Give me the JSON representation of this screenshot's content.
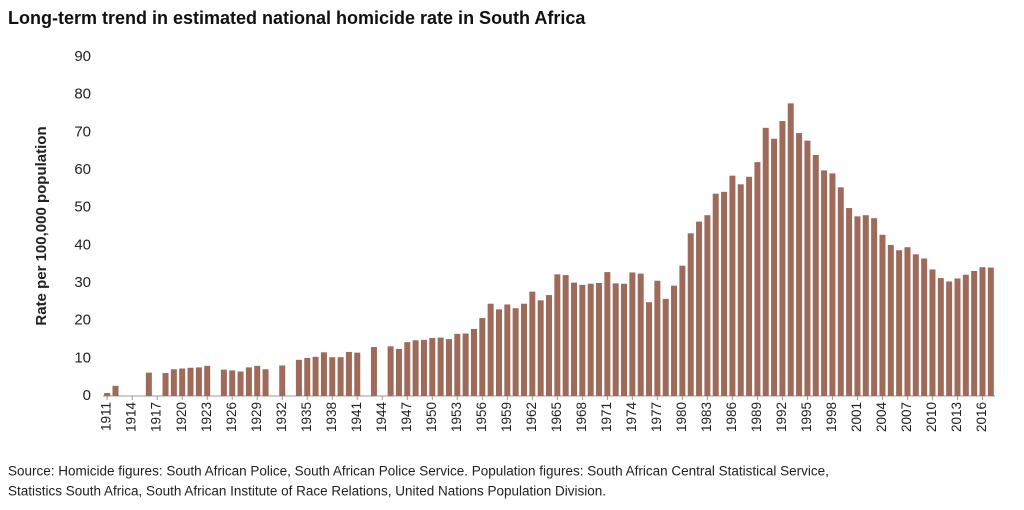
{
  "chart_data": {
    "type": "bar",
    "title": "Long-term trend in estimated national homicide rate in South Africa",
    "y_label": "Rate per 100,000 population",
    "source": [
      "Source: Homicide figures: South African Police, South African Police Service. Population figures: South African Central Statistical Service,",
      "Statistics South Africa, South African Institute of Race Relations, United Nations Population Division."
    ],
    "color": "#9e6b5a",
    "categories": [
      "1911",
      null,
      null,
      "1914",
      null,
      null,
      "1917",
      null,
      null,
      "1920",
      null,
      null,
      "1923",
      null,
      null,
      "1926",
      null,
      null,
      "1929",
      null,
      null,
      "1932",
      null,
      null,
      "1935",
      null,
      null,
      "1938",
      null,
      null,
      "1941",
      null,
      null,
      "1944",
      null,
      null,
      "1947",
      null,
      null,
      "1950",
      null,
      null,
      "1953",
      null,
      null,
      "1956",
      null,
      null,
      "1959",
      null,
      null,
      "1962",
      null,
      null,
      "1965",
      null,
      null,
      "1968",
      null,
      null,
      "1971",
      null,
      null,
      "1974",
      null,
      null,
      "1977",
      null,
      null,
      "1980",
      null,
      null,
      "1983",
      null,
      null,
      "1986",
      null,
      null,
      "1989",
      null,
      null,
      "1992",
      null,
      null,
      "1995",
      null,
      null,
      "1998",
      null,
      null,
      "2001",
      null,
      null,
      "2004",
      null,
      null,
      "2007",
      null,
      null,
      "2010",
      null,
      null,
      "2013",
      null,
      null,
      "2016",
      null
    ],
    "values": [
      0.8,
      2.7,
      null,
      null,
      null,
      6.2,
      null,
      6.1,
      7.1,
      7.3,
      7.5,
      7.6,
      8.0,
      null,
      7.0,
      6.8,
      6.5,
      7.6,
      8.0,
      7.1,
      null,
      8.1,
      null,
      9.6,
      10.1,
      10.4,
      11.6,
      10.3,
      10.3,
      11.7,
      11.5,
      null,
      13.0,
      null,
      13.2,
      12.5,
      14.3,
      14.8,
      14.9,
      15.4,
      15.5,
      15.1,
      16.5,
      16.6,
      17.8,
      20.7,
      24.5,
      23.0,
      24.3,
      23.3,
      24.5,
      27.7,
      25.4,
      26.8,
      32.3,
      32.1,
      30.1,
      29.5,
      29.8,
      30.0,
      32.9,
      29.9,
      29.8,
      32.8,
      32.5,
      24.9,
      30.6,
      25.8,
      29.3,
      34.6,
      43.2,
      46.3,
      48.0,
      53.7,
      54.2,
      58.5,
      56.2,
      58.2,
      62.1,
      71.2,
      68.3,
      73.0,
      77.7,
      69.8,
      67.8,
      64.0,
      59.9,
      59.1,
      55.4,
      49.9,
      47.7,
      48.0,
      47.2,
      42.8,
      40.1,
      38.7,
      39.5,
      37.6,
      36.5,
      33.6,
      31.3,
      30.4,
      31.2,
      32.2,
      33.2,
      34.2,
      34.1
    ],
    "ylim": [
      0,
      90
    ],
    "yticks": [
      0,
      10,
      20,
      30,
      40,
      50,
      60,
      70,
      80,
      90
    ],
    "grid": false
  }
}
